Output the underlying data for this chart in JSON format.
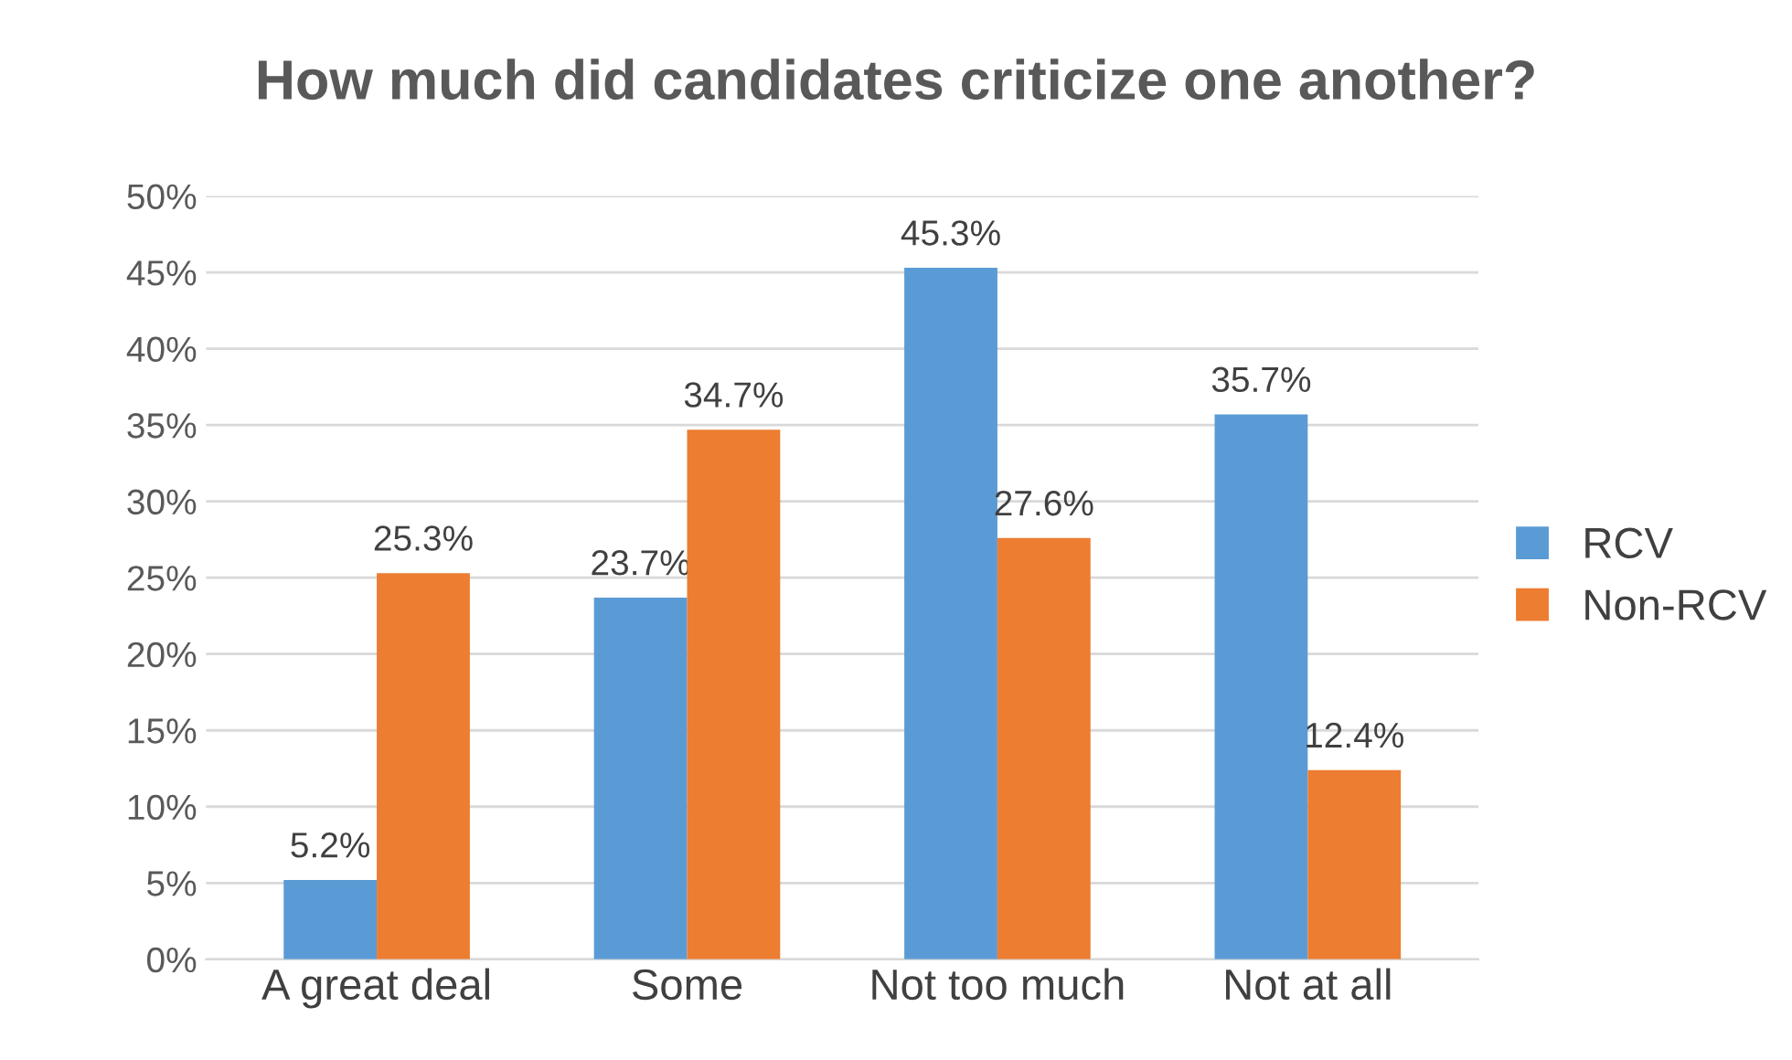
{
  "chart_data": {
    "type": "bar",
    "title": "How much did candidates criticize one another?",
    "categories": [
      "A great deal",
      "Some",
      "Not too much",
      "Not at all"
    ],
    "series": [
      {
        "name": "RCV",
        "color": "#5b9bd5",
        "values": [
          5.2,
          23.7,
          45.3,
          35.7
        ],
        "value_labels": [
          "5.2%",
          "23.7%",
          "45.3%",
          "35.7%"
        ]
      },
      {
        "name": "Non-RCV",
        "color": "#ed7d31",
        "values": [
          25.3,
          34.7,
          27.6,
          12.4
        ],
        "value_labels": [
          "25.3%",
          "34.7%",
          "27.6%",
          "12.4%"
        ]
      }
    ],
    "ylim": [
      0,
      50
    ],
    "yticks": [
      {
        "value": 0,
        "label": "0%"
      },
      {
        "value": 5,
        "label": "5%"
      },
      {
        "value": 10,
        "label": "10%"
      },
      {
        "value": 15,
        "label": "15%"
      },
      {
        "value": 20,
        "label": "20%"
      },
      {
        "value": 25,
        "label": "25%"
      },
      {
        "value": 30,
        "label": "30%"
      },
      {
        "value": 35,
        "label": "35%"
      },
      {
        "value": 40,
        "label": "40%"
      },
      {
        "value": 45,
        "label": "45%"
      },
      {
        "value": 50,
        "label": "50%"
      }
    ],
    "grid": "y",
    "legend": "right"
  }
}
